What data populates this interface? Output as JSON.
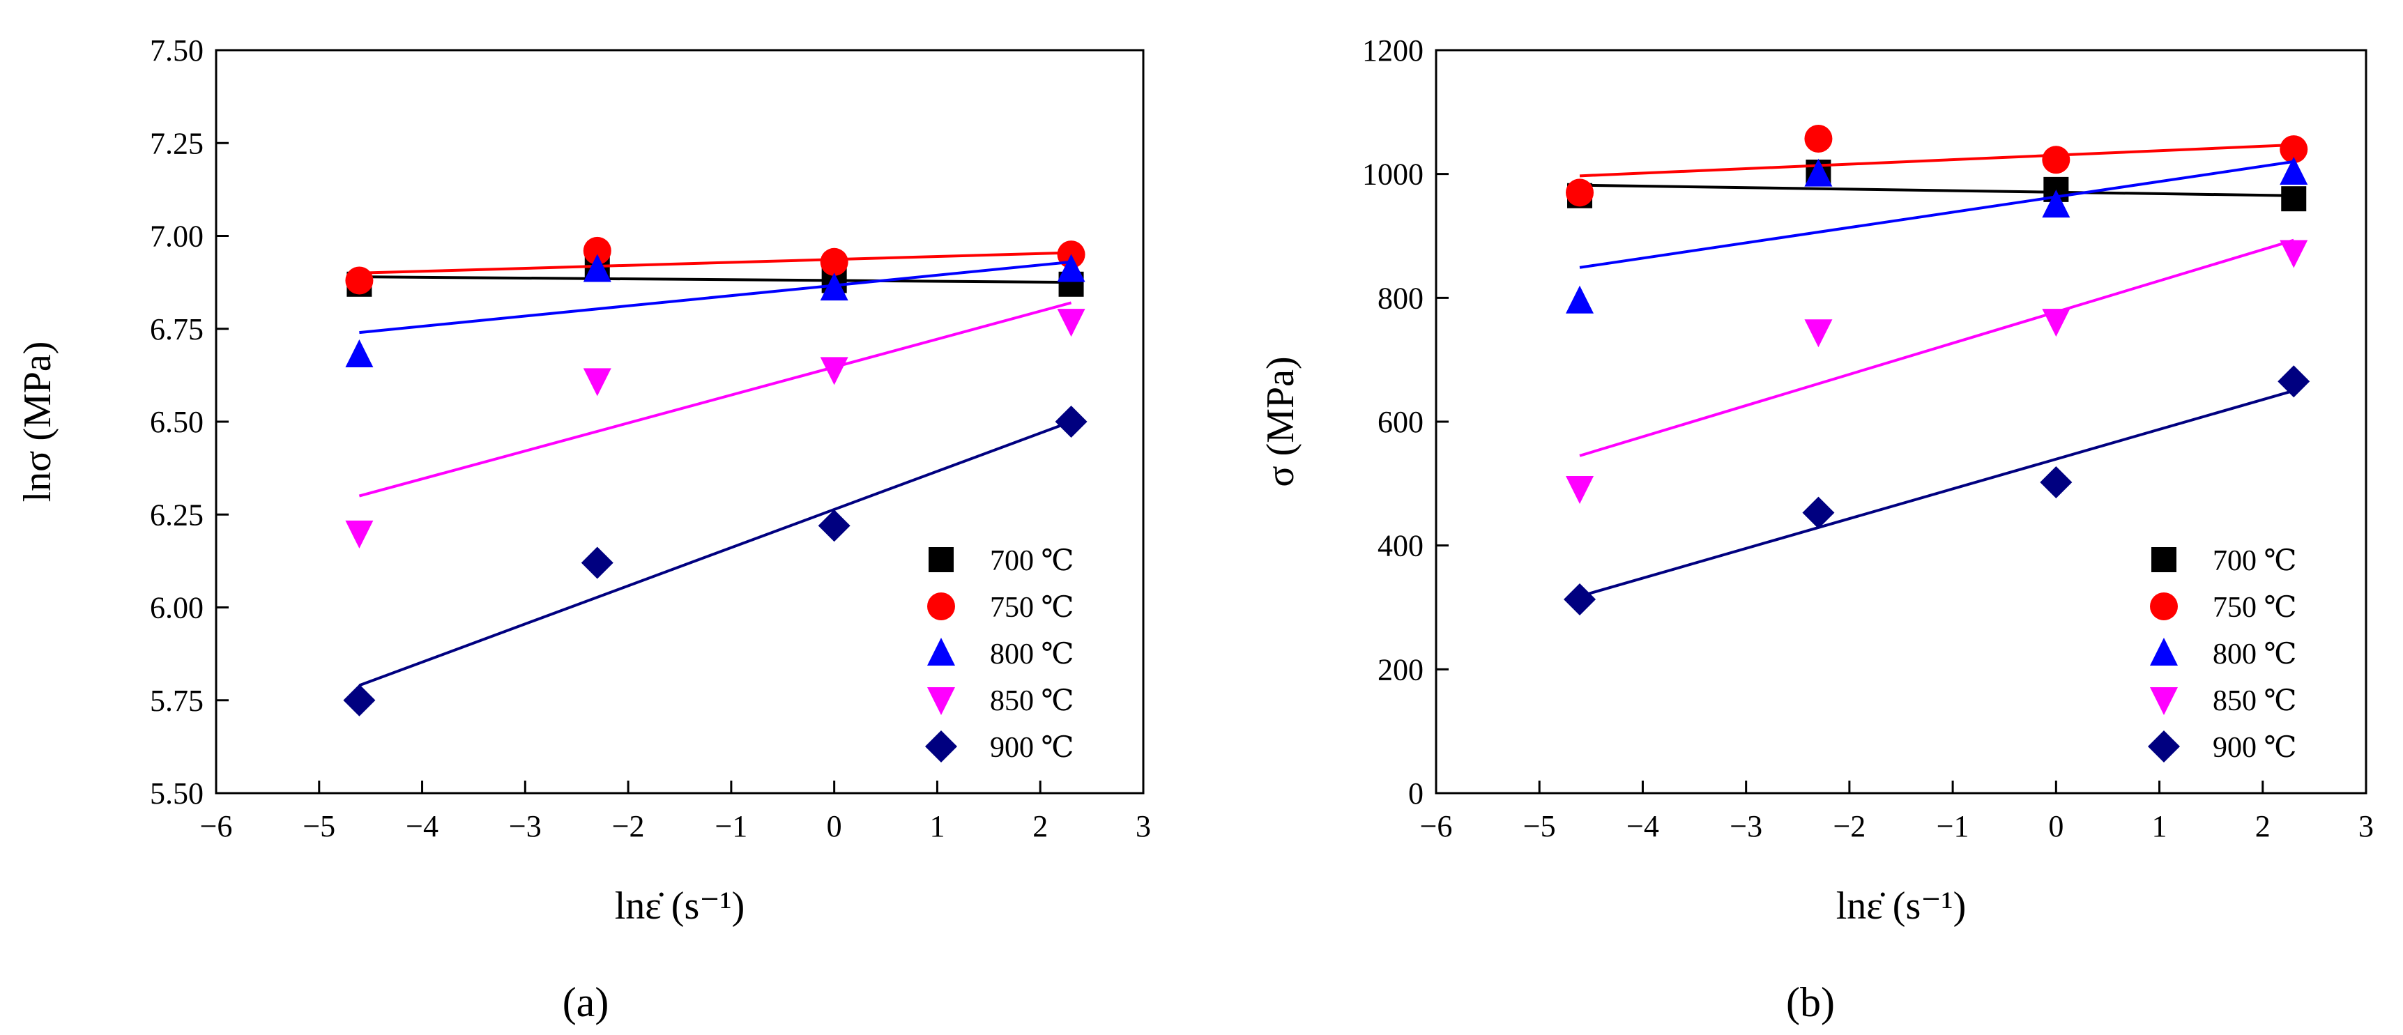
{
  "colors": {
    "700": "#000000",
    "750": "#ff0000",
    "800": "#0000ff",
    "850": "#ff00ff",
    "900": "#000080"
  },
  "chart_data": [
    {
      "type": "scatter",
      "panel_label": "(a)",
      "xlabel": "lnε̇ (s⁻¹)",
      "ylabel": "lnσ (MPa)",
      "xlim": [
        -6,
        3
      ],
      "ylim": [
        5.5,
        7.5
      ],
      "xticks": [
        -6,
        -5,
        -4,
        -3,
        -2,
        -1,
        0,
        1,
        2,
        3
      ],
      "yticks": [
        "5.50",
        "5.75",
        "6.00",
        "6.25",
        "6.50",
        "6.75",
        "7.00",
        "7.25",
        "7.50"
      ],
      "legend_position": "bottom-right",
      "series": [
        {
          "name": "700 ℃",
          "marker": "square",
          "color": "#000000",
          "x": [
            -4.61,
            -2.3,
            0,
            2.3
          ],
          "y": [
            6.87,
            6.91,
            6.88,
            6.87
          ],
          "fit": [
            [
              -4.61,
              6.89
            ],
            [
              2.3,
              6.875
            ]
          ]
        },
        {
          "name": "750 ℃",
          "marker": "circle",
          "color": "#ff0000",
          "x": [
            -4.61,
            -2.3,
            0,
            2.3
          ],
          "y": [
            6.88,
            6.96,
            6.93,
            6.95
          ],
          "fit": [
            [
              -4.61,
              6.9
            ],
            [
              2.3,
              6.955
            ]
          ]
        },
        {
          "name": "800 ℃",
          "marker": "triangle-up",
          "color": "#0000ff",
          "x": [
            -4.61,
            -2.3,
            0,
            2.3
          ],
          "y": [
            6.68,
            6.91,
            6.86,
            6.91
          ],
          "fit": [
            [
              -4.61,
              6.74
            ],
            [
              2.3,
              6.93
            ]
          ]
        },
        {
          "name": "850 ℃",
          "marker": "triangle-down",
          "color": "#ff00ff",
          "x": [
            -4.61,
            -2.3,
            0,
            2.3
          ],
          "y": [
            6.2,
            6.61,
            6.64,
            6.77
          ],
          "fit": [
            [
              -4.61,
              6.3
            ],
            [
              2.3,
              6.82
            ]
          ]
        },
        {
          "name": "900 ℃",
          "marker": "diamond",
          "color": "#000080",
          "x": [
            -4.61,
            -2.3,
            0,
            2.3
          ],
          "y": [
            5.75,
            6.12,
            6.22,
            6.5
          ],
          "fit": [
            [
              -4.61,
              5.79
            ],
            [
              2.3,
              6.5
            ]
          ]
        }
      ]
    },
    {
      "type": "scatter",
      "panel_label": "(b)",
      "xlabel": "lnε̇ (s⁻¹)",
      "ylabel": "σ (MPa)",
      "xlim": [
        -6,
        3
      ],
      "ylim": [
        0,
        1200
      ],
      "xticks": [
        -6,
        -5,
        -4,
        -3,
        -2,
        -1,
        0,
        1,
        2,
        3
      ],
      "yticks": [
        "0",
        "200",
        "400",
        "600",
        "800",
        "1000",
        "1200"
      ],
      "legend_position": "bottom-right",
      "series": [
        {
          "name": "700 ℃",
          "marker": "square",
          "color": "#000000",
          "x": [
            -4.61,
            -2.3,
            0,
            2.3
          ],
          "y": [
            965,
            1003,
            975,
            960
          ],
          "fit": [
            [
              -4.61,
              982
            ],
            [
              2.3,
              965
            ]
          ]
        },
        {
          "name": "750 ℃",
          "marker": "circle",
          "color": "#ff0000",
          "x": [
            -4.61,
            -2.3,
            0,
            2.3
          ],
          "y": [
            970,
            1057,
            1023,
            1040
          ],
          "fit": [
            [
              -4.61,
              997
            ],
            [
              2.3,
              1047
            ]
          ]
        },
        {
          "name": "800 ℃",
          "marker": "triangle-up",
          "color": "#0000ff",
          "x": [
            -4.61,
            -2.3,
            0,
            2.3
          ],
          "y": [
            795,
            1000,
            950,
            1003
          ],
          "fit": [
            [
              -4.61,
              849
            ],
            [
              2.3,
              1020
            ]
          ]
        },
        {
          "name": "850 ℃",
          "marker": "triangle-down",
          "color": "#ff00ff",
          "x": [
            -4.61,
            -2.3,
            0,
            2.3
          ],
          "y": [
            492,
            745,
            762,
            873
          ],
          "fit": [
            [
              -4.61,
              545
            ],
            [
              2.3,
              893
            ]
          ]
        },
        {
          "name": "900 ℃",
          "marker": "diamond",
          "color": "#000080",
          "x": [
            -4.61,
            -2.3,
            0,
            2.3
          ],
          "y": [
            313,
            453,
            502,
            665
          ],
          "fit": [
            [
              -4.61,
              318
            ],
            [
              2.3,
              650
            ]
          ]
        }
      ]
    }
  ]
}
